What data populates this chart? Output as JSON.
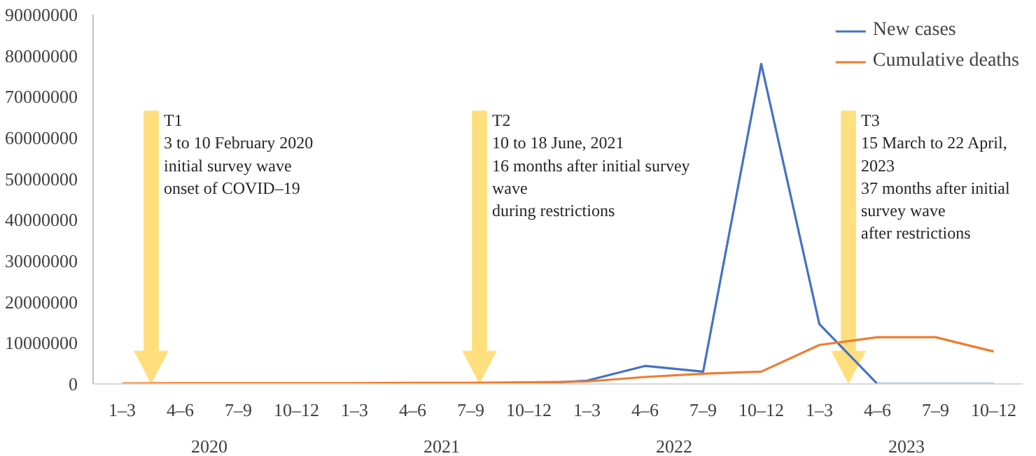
{
  "chart_data": {
    "type": "line",
    "categories": [
      "1–3",
      "4–6",
      "7–9",
      "10–12",
      "1–3",
      "4–6",
      "7–9",
      "10–12",
      "1–3",
      "4–6",
      "7–9",
      "10–12",
      "1–3",
      "4–6",
      "7–9",
      "10–12"
    ],
    "series": [
      {
        "name": "New cases",
        "color": "#4472c4",
        "values": [
          null,
          null,
          null,
          null,
          null,
          null,
          null,
          0,
          800000,
          4400000,
          3000000,
          78000000,
          14600000,
          0,
          0,
          0
        ]
      },
      {
        "name": "Cumulative deaths",
        "color": "#ed7d31",
        "values": [
          100000,
          200000,
          200000,
          200000,
          200000,
          300000,
          300000,
          400000,
          600000,
          1700000,
          2500000,
          3000000,
          9500000,
          11400000,
          11400000,
          7900000
        ]
      }
    ],
    "ylim": [
      0,
      90000000
    ],
    "yticks": [
      0,
      10000000,
      20000000,
      30000000,
      40000000,
      50000000,
      60000000,
      70000000,
      80000000,
      90000000
    ],
    "grid": false,
    "legend": "top right",
    "marker": "none",
    "line_style": "solid",
    "annotations": [
      "T1\n3 to 10 February 2020\ninitial survey wave\nonset of COVID–19",
      "T2\n10 to 18 June, 2021\n16 months after initial survey\nwave\nduring restrictions",
      "T3\n15 March to 22 April,\n2023\n37 months after initial\nsurvey wave\nafter restrictions",
      "2020",
      "2021",
      "2022",
      "2023"
    ]
  }
}
